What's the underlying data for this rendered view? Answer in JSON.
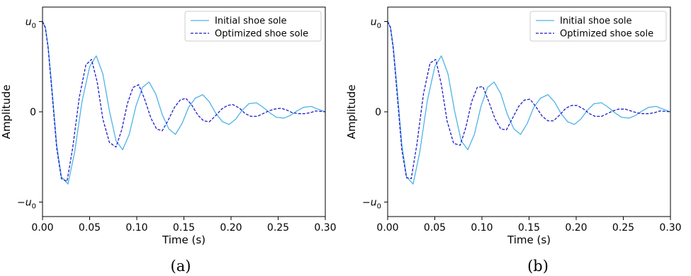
{
  "chart_data": [
    {
      "type": "line",
      "caption": "(a)",
      "xlabel": "Time (s)",
      "ylabel": "Amplitude",
      "xlim": [
        0.0,
        0.3
      ],
      "ylim": [
        -1.16,
        1.16
      ],
      "x_ticks": [
        0.0,
        0.05,
        0.1,
        0.15,
        0.2,
        0.25,
        0.3
      ],
      "x_tick_labels": [
        "0.00",
        "0.05",
        "0.10",
        "0.15",
        "0.20",
        "0.25",
        "0.30"
      ],
      "y_ticks": [
        1,
        0,
        -1
      ],
      "y_tick_labels": [
        "u0",
        "0",
        "−u0"
      ],
      "legend": "top-right",
      "grid": false,
      "series": [
        {
          "name": "Initial shoe sole",
          "color": "#4db3e6",
          "style": "solid",
          "x": [
            0.0,
            0.003,
            0.006,
            0.01,
            0.015,
            0.02,
            0.027,
            0.034,
            0.042,
            0.05,
            0.057,
            0.064,
            0.071,
            0.078,
            0.085,
            0.092,
            0.099,
            0.106,
            0.113,
            0.12,
            0.127,
            0.134,
            0.141,
            0.148,
            0.155,
            0.162,
            0.17,
            0.177,
            0.184,
            0.191,
            0.198,
            0.205,
            0.212,
            0.219,
            0.227,
            0.234,
            0.241,
            0.248,
            0.256,
            0.263,
            0.27,
            0.277,
            0.285,
            0.292,
            0.3
          ],
          "y": [
            1.0,
            0.94,
            0.72,
            0.26,
            -0.36,
            -0.72,
            -0.8,
            -0.45,
            0.12,
            0.5,
            0.62,
            0.42,
            0.01,
            -0.32,
            -0.42,
            -0.25,
            0.06,
            0.27,
            0.33,
            0.2,
            -0.03,
            -0.19,
            -0.25,
            -0.13,
            0.05,
            0.15,
            0.19,
            0.11,
            -0.02,
            -0.11,
            -0.14,
            -0.08,
            0.02,
            0.09,
            0.1,
            0.05,
            -0.01,
            -0.06,
            -0.07,
            -0.04,
            0.01,
            0.05,
            0.06,
            0.03,
            0.0
          ]
        },
        {
          "name": "Optimized shoe sole",
          "color": "#1c1cc8",
          "style": "dashed",
          "x": [
            0.0,
            0.003,
            0.006,
            0.01,
            0.015,
            0.02,
            0.026,
            0.032,
            0.039,
            0.046,
            0.052,
            0.058,
            0.064,
            0.071,
            0.078,
            0.084,
            0.09,
            0.096,
            0.102,
            0.108,
            0.115,
            0.121,
            0.127,
            0.133,
            0.14,
            0.146,
            0.152,
            0.158,
            0.165,
            0.171,
            0.177,
            0.183,
            0.19,
            0.196,
            0.202,
            0.209,
            0.215,
            0.221,
            0.228,
            0.234,
            0.24,
            0.246,
            0.253,
            0.259,
            0.265,
            0.271,
            0.278,
            0.284,
            0.29,
            0.3
          ],
          "y": [
            1.0,
            0.93,
            0.7,
            0.22,
            -0.4,
            -0.74,
            -0.77,
            -0.4,
            0.16,
            0.52,
            0.58,
            0.33,
            -0.08,
            -0.34,
            -0.39,
            -0.2,
            0.09,
            0.27,
            0.3,
            0.15,
            -0.07,
            -0.19,
            -0.21,
            -0.1,
            0.05,
            0.13,
            0.15,
            0.08,
            -0.04,
            -0.1,
            -0.11,
            -0.05,
            0.03,
            0.07,
            0.08,
            0.04,
            -0.02,
            -0.05,
            -0.05,
            -0.02,
            0.01,
            0.03,
            0.04,
            0.02,
            -0.01,
            -0.02,
            -0.02,
            -0.01,
            0.01,
            0.0
          ]
        }
      ]
    },
    {
      "type": "line",
      "caption": "(b)",
      "xlabel": "Time (s)",
      "ylabel": "Amplitude",
      "xlim": [
        0.0,
        0.3
      ],
      "ylim": [
        -1.16,
        1.16
      ],
      "x_ticks": [
        0.0,
        0.05,
        0.1,
        0.15,
        0.2,
        0.25,
        0.3
      ],
      "x_tick_labels": [
        "0.00",
        "0.05",
        "0.10",
        "0.15",
        "0.20",
        "0.25",
        "0.30"
      ],
      "y_ticks": [
        1,
        0,
        -1
      ],
      "y_tick_labels": [
        "u0",
        "0",
        "−u0"
      ],
      "legend": "top-right",
      "grid": false,
      "series": [
        {
          "name": "Initial shoe sole",
          "color": "#4db3e6",
          "style": "solid",
          "x": [
            0.0,
            0.003,
            0.006,
            0.01,
            0.015,
            0.02,
            0.027,
            0.034,
            0.042,
            0.05,
            0.057,
            0.064,
            0.071,
            0.078,
            0.085,
            0.092,
            0.099,
            0.106,
            0.113,
            0.12,
            0.127,
            0.134,
            0.141,
            0.148,
            0.155,
            0.162,
            0.17,
            0.177,
            0.184,
            0.191,
            0.198,
            0.205,
            0.212,
            0.219,
            0.227,
            0.234,
            0.241,
            0.248,
            0.256,
            0.263,
            0.27,
            0.277,
            0.285,
            0.292,
            0.3
          ],
          "y": [
            1.0,
            0.94,
            0.72,
            0.26,
            -0.36,
            -0.72,
            -0.8,
            -0.45,
            0.12,
            0.5,
            0.62,
            0.42,
            0.01,
            -0.32,
            -0.42,
            -0.25,
            0.06,
            0.27,
            0.33,
            0.2,
            -0.03,
            -0.19,
            -0.25,
            -0.13,
            0.05,
            0.15,
            0.19,
            0.11,
            -0.02,
            -0.11,
            -0.14,
            -0.08,
            0.02,
            0.09,
            0.1,
            0.05,
            -0.01,
            -0.06,
            -0.07,
            -0.04,
            0.01,
            0.05,
            0.06,
            0.03,
            0.0
          ]
        },
        {
          "name": "Optimized shoe sole",
          "color": "#1c1cc8",
          "style": "dashed",
          "x": [
            0.0,
            0.003,
            0.006,
            0.01,
            0.015,
            0.02,
            0.025,
            0.031,
            0.038,
            0.045,
            0.051,
            0.057,
            0.063,
            0.07,
            0.077,
            0.083,
            0.089,
            0.095,
            0.101,
            0.107,
            0.114,
            0.12,
            0.126,
            0.132,
            0.139,
            0.145,
            0.151,
            0.157,
            0.164,
            0.17,
            0.176,
            0.182,
            0.189,
            0.195,
            0.201,
            0.208,
            0.214,
            0.22,
            0.227,
            0.233,
            0.239,
            0.245,
            0.252,
            0.258,
            0.264,
            0.27,
            0.277,
            0.283,
            0.289,
            0.3
          ],
          "y": [
            1.0,
            0.93,
            0.69,
            0.2,
            -0.42,
            -0.73,
            -0.74,
            -0.36,
            0.2,
            0.54,
            0.58,
            0.3,
            -0.1,
            -0.35,
            -0.37,
            -0.17,
            0.11,
            0.27,
            0.28,
            0.12,
            -0.08,
            -0.19,
            -0.2,
            -0.08,
            0.06,
            0.13,
            0.14,
            0.06,
            -0.05,
            -0.1,
            -0.1,
            -0.04,
            0.04,
            0.07,
            0.07,
            0.03,
            -0.02,
            -0.05,
            -0.05,
            -0.02,
            0.01,
            0.03,
            0.03,
            0.01,
            -0.01,
            -0.02,
            -0.02,
            -0.01,
            0.01,
            0.0
          ]
        }
      ]
    }
  ]
}
